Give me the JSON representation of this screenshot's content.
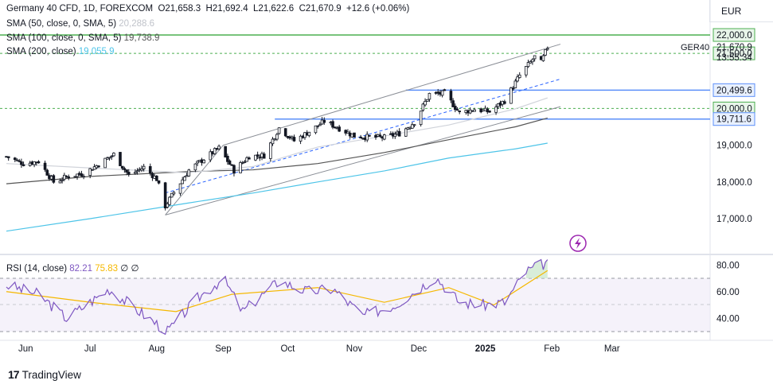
{
  "header": {
    "symbol": "Germany 40 CFD, 1D, FOREXCOM",
    "o_label": "O",
    "o_value": "21,658.3",
    "h_label": "H",
    "h_value": "21,692.4",
    "l_label": "L",
    "l_value": "21,622.6",
    "c_label": "C",
    "c_value": "21,670.9",
    "change": "+12.6 (+0.06%)"
  },
  "indicators": [
    {
      "label": "SMA (50, close, 0, SMA, 5)",
      "value": "20,288.6",
      "color": "#d0d3da"
    },
    {
      "label": "SMA (100, close, 0, SMA, 5)",
      "value": "19,738.9",
      "color": "#555555"
    },
    {
      "label": "SMA (200, close)",
      "value": "19,055.9",
      "color": "#4dc4e8"
    }
  ],
  "rsi_legend": {
    "label": "RSI (14, close)",
    "rsi": "82.21",
    "ma": "75.83",
    "empty": "∅"
  },
  "currency": "EUR",
  "price_axis": {
    "ticks": [
      "22,000.0",
      "21,500.0",
      "20,000.0",
      "19,000.0",
      "18,000.0",
      "17,000.0"
    ],
    "symbol_tag": "GER40",
    "last_price": "21,670.9",
    "countdown": "13:55:34",
    "level_badges": [
      "20,499.6",
      "19,711.6"
    ]
  },
  "rsi_axis": {
    "ticks": [
      "80.00",
      "60.00",
      "40.00"
    ]
  },
  "time_axis": {
    "labels": [
      "Jun",
      "Jul",
      "Aug",
      "Sep",
      "Oct",
      "Nov",
      "Dec",
      "2025",
      "Feb",
      "Mar"
    ]
  },
  "branding": {
    "logo": "17",
    "name": "TradingView"
  },
  "colors": {
    "up": "#131722",
    "down": "#131722",
    "sma50": "#d0d3da",
    "sma100": "#555555",
    "sma200": "#4dc4e8",
    "channel": "#8a8e96",
    "midline": "#2962ff",
    "hline_blue": "#5b8ff9",
    "hline_green": "#4caf50",
    "rsi": "#7e57c2",
    "rsi_ma": "#f5b800",
    "rsi_band": "#ede7f6"
  },
  "chart_data": [
    {
      "type": "candlestick",
      "title": "Germany 40 CFD, 1D, FOREXCOM",
      "xlabel": "",
      "ylabel": "",
      "x_range": [
        "2024-05-23",
        "2025-03-20"
      ],
      "ylim": [
        16300,
        22400
      ],
      "candles": [
        {
          "t": "2024-05-23",
          "c": 18690
        },
        {
          "t": "2024-05-31",
          "c": 18500
        },
        {
          "t": "2024-06-07",
          "c": 18560
        },
        {
          "t": "2024-06-14",
          "c": 18000
        },
        {
          "t": "2024-06-21",
          "c": 18160
        },
        {
          "t": "2024-06-28",
          "c": 18230
        },
        {
          "t": "2024-07-05",
          "c": 18480
        },
        {
          "t": "2024-07-12",
          "c": 18750
        },
        {
          "t": "2024-07-19",
          "c": 18180
        },
        {
          "t": "2024-07-26",
          "c": 18400
        },
        {
          "t": "2024-08-01",
          "c": 18080
        },
        {
          "t": "2024-08-05",
          "c": 17340
        },
        {
          "t": "2024-08-09",
          "c": 17720
        },
        {
          "t": "2024-08-16",
          "c": 18320
        },
        {
          "t": "2024-08-23",
          "c": 18630
        },
        {
          "t": "2024-08-30",
          "c": 18920
        },
        {
          "t": "2024-09-06",
          "c": 18310
        },
        {
          "t": "2024-09-13",
          "c": 18700
        },
        {
          "t": "2024-09-20",
          "c": 18720
        },
        {
          "t": "2024-09-27",
          "c": 19470
        },
        {
          "t": "2024-10-04",
          "c": 19120
        },
        {
          "t": "2024-10-11",
          "c": 19370
        },
        {
          "t": "2024-10-18",
          "c": 19650
        },
        {
          "t": "2024-10-25",
          "c": 19460
        },
        {
          "t": "2024-11-01",
          "c": 19250
        },
        {
          "t": "2024-11-08",
          "c": 19220
        },
        {
          "t": "2024-11-15",
          "c": 19210
        },
        {
          "t": "2024-11-22",
          "c": 19320
        },
        {
          "t": "2024-11-29",
          "c": 19630
        },
        {
          "t": "2024-12-06",
          "c": 20390
        },
        {
          "t": "2024-12-13",
          "c": 20410
        },
        {
          "t": "2024-12-20",
          "c": 19880
        },
        {
          "t": "2024-12-27",
          "c": 19980
        },
        {
          "t": "2025-01-03",
          "c": 19910
        },
        {
          "t": "2025-01-10",
          "c": 20210
        },
        {
          "t": "2025-01-17",
          "c": 20900
        },
        {
          "t": "2025-01-24",
          "c": 21400
        },
        {
          "t": "2025-01-27",
          "c": 21250
        },
        {
          "t": "2025-01-30",
          "c": 21670.9
        }
      ],
      "sma50": [
        [
          "2024-05-23",
          18500
        ],
        [
          "2024-07-01",
          18380
        ],
        [
          "2024-08-15",
          18250
        ],
        [
          "2024-09-15",
          18420
        ],
        [
          "2024-10-15",
          18950
        ],
        [
          "2024-11-15",
          19250
        ],
        [
          "2024-12-15",
          19550
        ],
        [
          "2025-01-15",
          19990
        ],
        [
          "2025-01-30",
          20288.6
        ]
      ],
      "sma100": [
        [
          "2024-05-23",
          17950
        ],
        [
          "2024-07-01",
          18150
        ],
        [
          "2024-08-15",
          18280
        ],
        [
          "2024-09-15",
          18330
        ],
        [
          "2024-10-15",
          18500
        ],
        [
          "2024-11-15",
          18800
        ],
        [
          "2024-12-15",
          19150
        ],
        [
          "2025-01-15",
          19500
        ],
        [
          "2025-01-30",
          19738.9
        ]
      ],
      "sma200": [
        [
          "2024-05-23",
          16660
        ],
        [
          "2024-07-01",
          17000
        ],
        [
          "2024-08-15",
          17420
        ],
        [
          "2024-09-15",
          17700
        ],
        [
          "2024-10-15",
          18000
        ],
        [
          "2024-11-15",
          18300
        ],
        [
          "2024-12-15",
          18650
        ],
        [
          "2025-01-15",
          18900
        ],
        [
          "2025-01-30",
          19055.9
        ]
      ],
      "horizontal_levels": [
        22000,
        21500,
        20499.6,
        20000,
        19711.6
      ],
      "channel_upper": [
        [
          "2024-09-01",
          19000
        ],
        [
          "2025-02-05",
          21750
        ]
      ],
      "channel_mid": [
        [
          "2024-08-05",
          17700
        ],
        [
          "2025-02-05",
          20800
        ]
      ],
      "channel_lower": [
        [
          "2024-08-05",
          17100
        ],
        [
          "2025-02-05",
          20050
        ]
      ]
    },
    {
      "type": "line",
      "title": "RSI (14, close)",
      "ylim": [
        25,
        85
      ],
      "bands": [
        30,
        50,
        70
      ],
      "series": [
        {
          "name": "RSI",
          "values": [
            [
              "2024-05-23",
              65
            ],
            [
              "2024-06-07",
              58
            ],
            [
              "2024-06-20",
              40
            ],
            [
              "2024-07-10",
              62
            ],
            [
              "2024-07-24",
              45
            ],
            [
              "2024-08-06",
              30
            ],
            [
              "2024-08-20",
              55
            ],
            [
              "2024-09-01",
              70
            ],
            [
              "2024-09-10",
              45
            ],
            [
              "2024-09-27",
              68
            ],
            [
              "2024-10-10",
              60
            ],
            [
              "2024-10-22",
              62
            ],
            [
              "2024-11-05",
              42
            ],
            [
              "2024-11-20",
              50
            ],
            [
              "2024-12-09",
              71
            ],
            [
              "2024-12-20",
              52
            ],
            [
              "2024-12-31",
              50
            ],
            [
              "2025-01-10",
              52
            ],
            [
              "2025-01-20",
              75
            ],
            [
              "2025-01-30",
              82.21
            ]
          ]
        },
        {
          "name": "RSI MA",
          "values": [
            [
              "2024-05-23",
              60
            ],
            [
              "2024-07-01",
              52
            ],
            [
              "2024-08-10",
              45
            ],
            [
              "2024-09-05",
              58
            ],
            [
              "2024-10-15",
              63
            ],
            [
              "2024-11-15",
              52
            ],
            [
              "2024-12-15",
              63
            ],
            [
              "2025-01-05",
              50
            ],
            [
              "2025-01-30",
              75.83
            ]
          ]
        }
      ]
    }
  ]
}
